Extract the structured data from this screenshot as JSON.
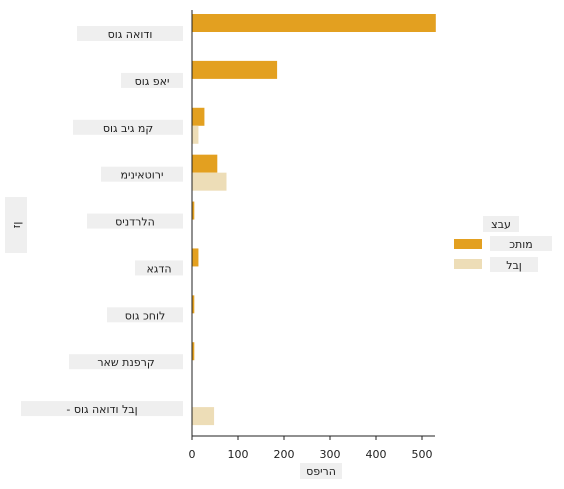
{
  "colors": {
    "series1": "#E3A020",
    "series2": "#EDDDB7",
    "axis": "#222222",
    "label_bg": "#EFEFEF"
  },
  "chart_data": {
    "type": "bar",
    "orientation": "horizontal",
    "categories": [
      "ודואה גוס",
      "יאפ גוס",
      "קמ גיב גוס",
      "ירוטאינימ",
      "הלרדניס",
      "הדגא",
      "לוחכ גוס",
      "קרפנת שאר",
      "- ןבל ודואה גוס"
    ],
    "series": [
      {
        "name": "מותכ",
        "values": [
          530,
          185,
          27,
          55,
          5,
          14,
          5,
          5,
          0
        ]
      },
      {
        "name": "ןבל",
        "values": [
          0,
          0,
          14,
          75,
          0,
          0,
          0,
          0,
          48
        ]
      }
    ],
    "x_ticks": [
      0,
      100,
      200,
      300,
      400,
      500
    ],
    "xlim": [
      0,
      550
    ],
    "xlabel": "הריפס",
    "ylabel": "ןז",
    "legend": {
      "title": "עבצ",
      "position": "right"
    },
    "grid": false
  }
}
